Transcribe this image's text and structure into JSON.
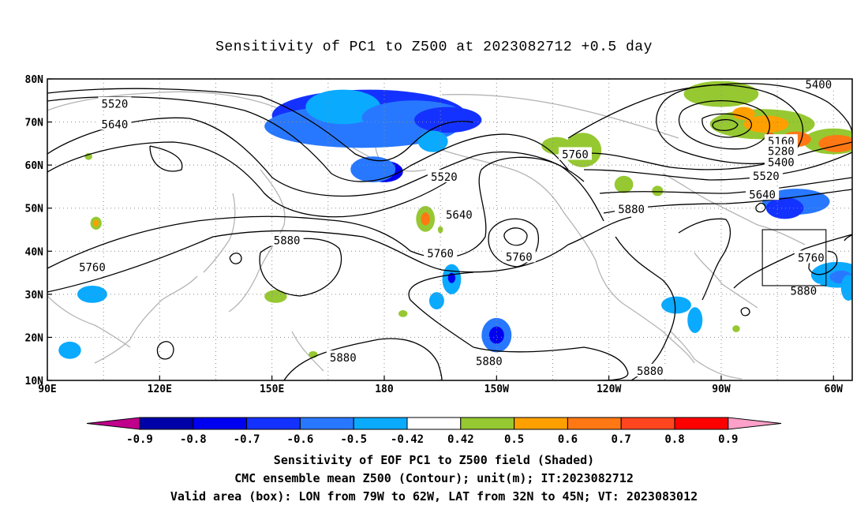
{
  "chart_data": {
    "type": "heatmap",
    "title": "Sensitivity of PC1 to Z500 at 2023082712 +0.5 day",
    "map": {
      "lon_range_east": [
        90,
        305
      ],
      "lat_range": [
        10,
        80
      ],
      "x_ticks": [
        {
          "lon": 90,
          "label": "90E"
        },
        {
          "lon": 120,
          "label": "120E"
        },
        {
          "lon": 150,
          "label": "150E"
        },
        {
          "lon": 180,
          "label": "180"
        },
        {
          "lon": 210,
          "label": "150W"
        },
        {
          "lon": 240,
          "label": "120W"
        },
        {
          "lon": 270,
          "label": "90W"
        },
        {
          "lon": 300,
          "label": "60W"
        }
      ],
      "y_ticks": [
        {
          "lat": 80,
          "label": "80N"
        },
        {
          "lat": 70,
          "label": "70N"
        },
        {
          "lat": 60,
          "label": "60N"
        },
        {
          "lat": 50,
          "label": "50N"
        },
        {
          "lat": 40,
          "label": "40N"
        },
        {
          "lat": 30,
          "label": "30N"
        },
        {
          "lat": 20,
          "label": "20N"
        },
        {
          "lat": 10,
          "label": "10N"
        }
      ],
      "grid": true
    },
    "colorbar": {
      "labels": [
        "-0.9",
        "-0.8",
        "-0.7",
        "-0.6",
        "-0.5",
        "-0.42",
        "0.42",
        "0.5",
        "0.6",
        "0.7",
        "0.8",
        "0.9"
      ],
      "colors": [
        "#0000a8",
        "#0000f0",
        "#1432ff",
        "#2878ff",
        "#0aaaff",
        "#ffffff",
        "#96c832",
        "#ffa000",
        "#ff7814",
        "#ff461e",
        "#ff0000"
      ],
      "under_color": "#c0008c",
      "over_color": "#ffa0c8"
    },
    "contour_labels": [
      {
        "lon": 108,
        "lat": 74.2,
        "label": "5520"
      },
      {
        "lon": 108,
        "lat": 69.5,
        "label": "5640"
      },
      {
        "lon": 296,
        "lat": 78.7,
        "label": "5400"
      },
      {
        "lon": 196,
        "lat": 57.3,
        "label": "5520"
      },
      {
        "lon": 231,
        "lat": 62.5,
        "label": "5760"
      },
      {
        "lon": 200,
        "lat": 48.5,
        "label": "5640"
      },
      {
        "lon": 154,
        "lat": 42.5,
        "label": "5880"
      },
      {
        "lon": 195,
        "lat": 39.5,
        "label": "5760"
      },
      {
        "lon": 216,
        "lat": 38.7,
        "label": "5760"
      },
      {
        "lon": 246,
        "lat": 49.8,
        "label": "5880"
      },
      {
        "lon": 102,
        "lat": 36.3,
        "label": "5760"
      },
      {
        "lon": 169,
        "lat": 15.3,
        "label": "5880"
      },
      {
        "lon": 208,
        "lat": 14.5,
        "label": "5880"
      },
      {
        "lon": 251,
        "lat": 12.2,
        "label": "5880"
      },
      {
        "lon": 286,
        "lat": 65.5,
        "label": "5160"
      },
      {
        "lon": 286,
        "lat": 63.2,
        "label": "5280"
      },
      {
        "lon": 286,
        "lat": 60.7,
        "label": "5400"
      },
      {
        "lon": 282,
        "lat": 57.5,
        "label": "5520"
      },
      {
        "lon": 281,
        "lat": 53.2,
        "label": "5640"
      },
      {
        "lon": 294,
        "lat": 38.5,
        "label": "5760"
      },
      {
        "lon": 292,
        "lat": 30.8,
        "label": "5880"
      }
    ],
    "valid_area_box": {
      "lon": [
        281,
        298
      ],
      "lat": [
        32,
        45
      ]
    }
  },
  "captions": {
    "line1": "Sensitivity of EOF PC1 to Z500 field (Shaded)",
    "line2": "CMC ensemble mean Z500 (Contour); unit(m); IT:2023082712",
    "line3": "Valid area (box): LON from 79W to 62W, LAT from 32N to 45N; VT: 2023083012"
  }
}
